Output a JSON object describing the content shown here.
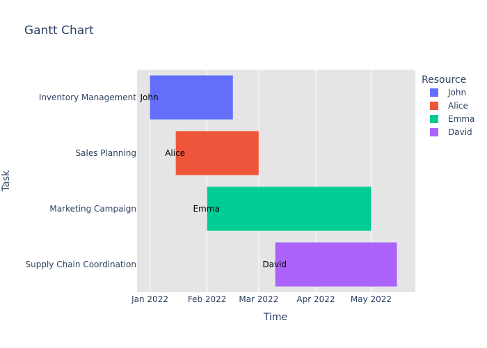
{
  "chart_data": {
    "type": "gantt",
    "title": "Gantt Chart",
    "xlabel": "Time",
    "ylabel": "Task",
    "x_ticks": [
      "Jan 2022",
      "Feb 2022",
      "Mar 2022",
      "Apr 2022",
      "May 2022"
    ],
    "x_tick_dates": [
      "2022-01-01",
      "2022-02-01",
      "2022-03-01",
      "2022-04-01",
      "2022-05-01"
    ],
    "xlim": [
      "2021-12-25",
      "2022-05-25"
    ],
    "tasks": [
      {
        "task": "Inventory Management",
        "resource": "John",
        "start": "2022-01-01",
        "end": "2022-02-15"
      },
      {
        "task": "Sales Planning",
        "resource": "Alice",
        "start": "2022-01-15",
        "end": "2022-03-01"
      },
      {
        "task": "Marketing Campaign",
        "resource": "Emma",
        "start": "2022-02-01",
        "end": "2022-05-01"
      },
      {
        "task": "Supply Chain Coordination",
        "resource": "David",
        "start": "2022-03-10",
        "end": "2022-05-15"
      }
    ],
    "legend": {
      "title": "Resource",
      "placement": "top-right",
      "entries": [
        {
          "name": "John",
          "color": "#636efa"
        },
        {
          "name": "Alice",
          "color": "#ef553b"
        },
        {
          "name": "Emma",
          "color": "#00cc96"
        },
        {
          "name": "David",
          "color": "#ab63fa"
        }
      ]
    },
    "grid": true
  }
}
